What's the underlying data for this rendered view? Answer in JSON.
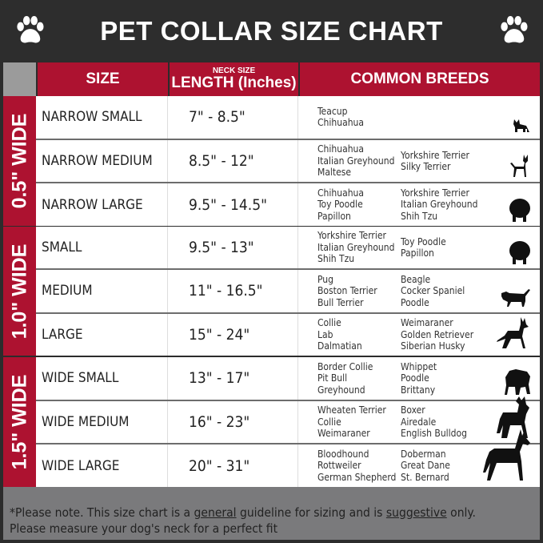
{
  "title": "PET COLLAR SIZE CHART",
  "header": {
    "size": "SIZE",
    "neck_size": "NECK SIZE",
    "length": "LENGTH (Inches)",
    "breeds": "COMMON BREEDS"
  },
  "colors": {
    "red": "#ad1230",
    "dark": "#2d2d2d",
    "footer": "#7a7a7c"
  },
  "groups": [
    {
      "label": "0.5\" WIDE",
      "rows": [
        {
          "size": "NARROW SMALL",
          "length": "7\" - 8.5\"",
          "breeds": [
            [
              "Teacup",
              "Chihuahua"
            ],
            []
          ],
          "icon": "yorkie-silhouette-icon"
        },
        {
          "size": "NARROW MEDIUM",
          "length": "8.5\" - 12\"",
          "breeds": [
            [
              "Chihuahua",
              "Italian Greyhound",
              "Maltese"
            ],
            [
              "Yorkshire Terrier",
              "Silky Terrier"
            ]
          ],
          "icon": "chihuahua-silhouette-icon"
        },
        {
          "size": "NARROW LARGE",
          "length": "9.5\" - 14.5\"",
          "breeds": [
            [
              "Chihuahua",
              "Toy Poodle",
              "Papillon"
            ],
            [
              "Yorkshire Terrier",
              "Italian Greyhound",
              "Shih Tzu"
            ]
          ],
          "icon": "pomeranian-silhouette-icon"
        }
      ]
    },
    {
      "label": "1.0\" WIDE",
      "rows": [
        {
          "size": "SMALL",
          "length": "9.5\" - 13\"",
          "breeds": [
            [
              "Yorkshire Terrier",
              "Italian Greyhound",
              "Shih Tzu"
            ],
            [
              "Toy Poodle",
              "Papillon"
            ]
          ],
          "icon": "pomeranian-silhouette-icon"
        },
        {
          "size": "MEDIUM",
          "length": "11\" - 16.5\"",
          "breeds": [
            [
              "Pug",
              "Boston Terrier",
              "Bull Terrier"
            ],
            [
              "Beagle",
              "Cocker Spaniel",
              "Poodle"
            ]
          ],
          "icon": "dachshund-silhouette-icon"
        },
        {
          "size": "LARGE",
          "length": "15\" - 24\"",
          "breeds": [
            [
              "Collie",
              "Lab",
              "Dalmatian"
            ],
            [
              "Weimaraner",
              "Golden Retriever",
              "Siberian Husky"
            ]
          ],
          "icon": "shepherd-silhouette-icon"
        }
      ]
    },
    {
      "label": "1.5\" WIDE",
      "rows": [
        {
          "size": "WIDE SMALL",
          "length": "13\" - 17\"",
          "breeds": [
            [
              "Border Collie",
              "Pit Bull",
              "Greyhound"
            ],
            [
              "Whippet",
              "Poodle",
              "Brittany"
            ]
          ],
          "icon": "bulldog-silhouette-icon"
        },
        {
          "size": "WIDE MEDIUM",
          "length": "16\" - 23\"",
          "breeds": [
            [
              "Wheaten Terrier",
              "Collie",
              "Weimaraner"
            ],
            [
              "Boxer",
              "Airedale",
              "English Bulldog"
            ]
          ],
          "icon": "pitbull-silhouette-icon"
        },
        {
          "size": "WIDE LARGE",
          "length": "20\" - 31\"",
          "breeds": [
            [
              "Bloodhound",
              "Rottweiler",
              "German Shepherd"
            ],
            [
              "Doberman",
              "Great Dane",
              "St. Bernard"
            ]
          ],
          "icon": "doberman-silhouette-icon"
        }
      ]
    }
  ],
  "footer": {
    "p1": "*Please note. This size chart is a ",
    "u1": "general",
    "p2": " guideline for sizing and is ",
    "u2": "suggestive",
    "p3": " only.",
    "line2": "Please measure your dog's neck for a perfect fit"
  }
}
